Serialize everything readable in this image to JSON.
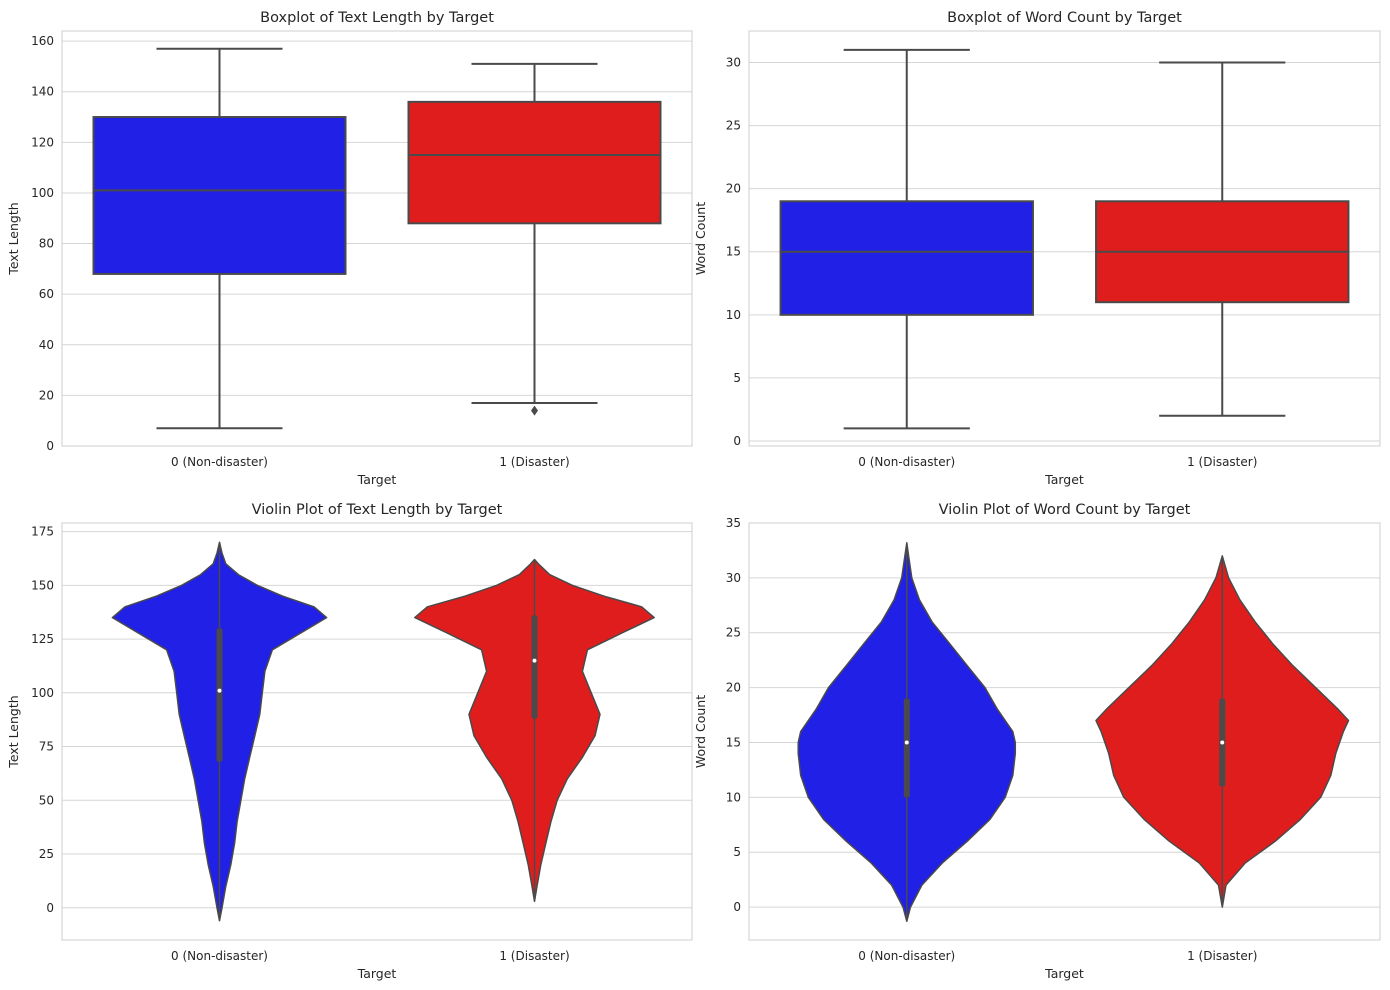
{
  "chart_data": [
    {
      "type": "box",
      "title": "Boxplot of Text Length by Target",
      "xlabel": "Target",
      "ylabel": "Text Length",
      "ylim": [
        0,
        164
      ],
      "yticks": [
        0,
        20,
        40,
        60,
        80,
        100,
        120,
        140,
        160
      ],
      "grid": true,
      "categories": [
        "0 (Non-disaster)",
        "1 (Disaster)"
      ],
      "colors": [
        "#2020e6",
        "#e01d1d"
      ],
      "boxes": [
        {
          "whisker_low": 7,
          "q1": 68,
          "median": 101,
          "q3": 130,
          "whisker_high": 157,
          "outliers": []
        },
        {
          "whisker_low": 17,
          "q1": 88,
          "median": 115,
          "q3": 136,
          "whisker_high": 151,
          "outliers": [
            14
          ]
        }
      ]
    },
    {
      "type": "box",
      "title": "Boxplot of Word Count by Target",
      "xlabel": "Target",
      "ylabel": "Word Count",
      "ylim": [
        -0.4,
        32.5
      ],
      "yticks": [
        0,
        5,
        10,
        15,
        20,
        25,
        30
      ],
      "grid": true,
      "categories": [
        "0 (Non-disaster)",
        "1 (Disaster)"
      ],
      "colors": [
        "#2020e6",
        "#e01d1d"
      ],
      "boxes": [
        {
          "whisker_low": 1,
          "q1": 10,
          "median": 15,
          "q3": 19,
          "whisker_high": 31,
          "outliers": []
        },
        {
          "whisker_low": 2,
          "q1": 11,
          "median": 15,
          "q3": 19,
          "whisker_high": 30,
          "outliers": []
        }
      ]
    },
    {
      "type": "violin",
      "title": "Violin Plot of Text Length by Target",
      "xlabel": "Target",
      "ylabel": "Text Length",
      "ylim": [
        -15,
        179
      ],
      "yticks": [
        0,
        25,
        50,
        75,
        100,
        125,
        150,
        175
      ],
      "grid": true,
      "categories": [
        "0 (Non-disaster)",
        "1 (Disaster)"
      ],
      "colors": [
        "#2020e6",
        "#e01d1d"
      ],
      "violins": [
        {
          "min": -6,
          "max": 170,
          "q1": 68,
          "median": 101,
          "q3": 130,
          "density": [
            [
              -6,
              0
            ],
            [
              0,
              0.02
            ],
            [
              10,
              0.05
            ],
            [
              20,
              0.09
            ],
            [
              30,
              0.12
            ],
            [
              40,
              0.14
            ],
            [
              50,
              0.17
            ],
            [
              60,
              0.2
            ],
            [
              70,
              0.24
            ],
            [
              80,
              0.28
            ],
            [
              90,
              0.32
            ],
            [
              100,
              0.34
            ],
            [
              110,
              0.36
            ],
            [
              120,
              0.42
            ],
            [
              128,
              0.65
            ],
            [
              135,
              0.85
            ],
            [
              140,
              0.75
            ],
            [
              145,
              0.5
            ],
            [
              150,
              0.3
            ],
            [
              155,
              0.15
            ],
            [
              160,
              0.05
            ],
            [
              165,
              0.02
            ],
            [
              170,
              0
            ]
          ]
        },
        {
          "min": 3,
          "max": 162,
          "q1": 88,
          "median": 115,
          "q3": 136,
          "density": [
            [
              3,
              0
            ],
            [
              10,
              0.02
            ],
            [
              20,
              0.05
            ],
            [
              30,
              0.09
            ],
            [
              40,
              0.13
            ],
            [
              50,
              0.18
            ],
            [
              60,
              0.26
            ],
            [
              70,
              0.38
            ],
            [
              80,
              0.48
            ],
            [
              90,
              0.52
            ],
            [
              100,
              0.45
            ],
            [
              110,
              0.38
            ],
            [
              120,
              0.42
            ],
            [
              128,
              0.7
            ],
            [
              135,
              0.95
            ],
            [
              140,
              0.85
            ],
            [
              145,
              0.55
            ],
            [
              150,
              0.3
            ],
            [
              155,
              0.12
            ],
            [
              160,
              0.03
            ],
            [
              162,
              0
            ]
          ]
        }
      ]
    },
    {
      "type": "violin",
      "title": "Violin Plot of Word Count by Target",
      "xlabel": "Target",
      "ylabel": "Word Count",
      "ylim": [
        -3,
        35
      ],
      "yticks": [
        0,
        5,
        10,
        15,
        20,
        25,
        30,
        35
      ],
      "grid": true,
      "categories": [
        "0 (Non-disaster)",
        "1 (Disaster)"
      ],
      "colors": [
        "#2020e6",
        "#e01d1d"
      ],
      "violins": [
        {
          "min": -1.3,
          "max": 33.2,
          "q1": 10,
          "median": 15,
          "q3": 19,
          "density": [
            [
              -1.3,
              0
            ],
            [
              0,
              0.03
            ],
            [
              2,
              0.12
            ],
            [
              4,
              0.28
            ],
            [
              6,
              0.48
            ],
            [
              8,
              0.66
            ],
            [
              10,
              0.78
            ],
            [
              12,
              0.84
            ],
            [
              14,
              0.86
            ],
            [
              15,
              0.86
            ],
            [
              16,
              0.84
            ],
            [
              18,
              0.72
            ],
            [
              20,
              0.62
            ],
            [
              22,
              0.48
            ],
            [
              24,
              0.34
            ],
            [
              26,
              0.2
            ],
            [
              28,
              0.1
            ],
            [
              30,
              0.04
            ],
            [
              32,
              0.015
            ],
            [
              33.2,
              0
            ]
          ]
        },
        {
          "min": 0,
          "max": 32,
          "q1": 11,
          "median": 15,
          "q3": 19,
          "density": [
            [
              0,
              0
            ],
            [
              2,
              0.03
            ],
            [
              4,
              0.18
            ],
            [
              6,
              0.42
            ],
            [
              8,
              0.62
            ],
            [
              10,
              0.78
            ],
            [
              12,
              0.86
            ],
            [
              14,
              0.9
            ],
            [
              16,
              0.96
            ],
            [
              17,
              1.0
            ],
            [
              18,
              0.92
            ],
            [
              20,
              0.74
            ],
            [
              22,
              0.56
            ],
            [
              24,
              0.4
            ],
            [
              26,
              0.26
            ],
            [
              28,
              0.14
            ],
            [
              30,
              0.05
            ],
            [
              32,
              0
            ]
          ]
        }
      ]
    }
  ]
}
